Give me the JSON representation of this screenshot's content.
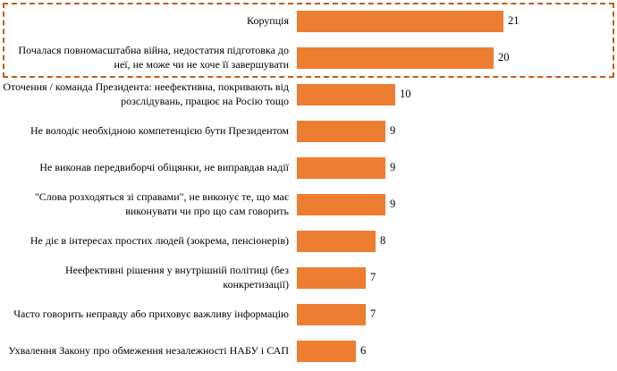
{
  "chart_data": {
    "type": "bar",
    "orientation": "horizontal",
    "title": "",
    "xlabel": "",
    "ylabel": "",
    "xlim": [
      0,
      22
    ],
    "grid": false,
    "legend": false,
    "bar_color": "#ED7D31",
    "categories": [
      "Корупція",
      "Почалася повномасштабна війна, недостатня підготовка до неї, не може чи не хоче її завершувати",
      "Оточення / команда Президента: неефективна, покривають від розслідувань, працює на Росію тощо",
      "Не володіє необхідною компетенцією бути Президентом",
      "Не виконав передвиборчі обіцянки, не виправдав надії",
      "\"Слова розходяться зі справами\", не виконує те, що має виконувати чи про що сам говорить",
      "Не діє в інтересах простих людей (зокрема, пенсіонерів)",
      "Неефективні рішення у внутрішній політиці (без конкретизації)",
      "Часто говорить неправду або приховує важливу інформацію",
      "Ухвалення Закону про обмеження незалежності НАБУ і САП"
    ],
    "values": [
      21,
      20,
      10,
      9,
      9,
      9,
      8,
      7,
      7,
      6
    ],
    "highlight_box": {
      "rows": [
        0,
        1
      ],
      "border_color": "#C55A11",
      "style": "dashed"
    }
  }
}
